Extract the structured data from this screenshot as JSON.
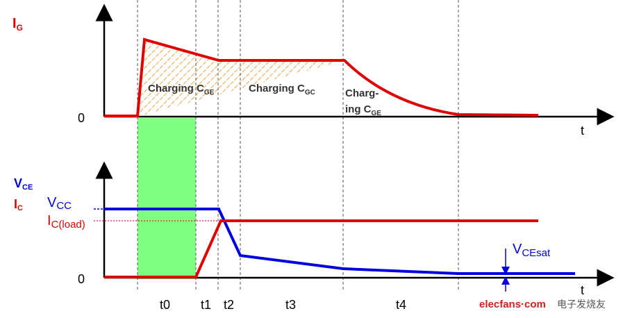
{
  "top_axis": {
    "y_label": {
      "main": "I",
      "sub": "G"
    },
    "zero": "0",
    "x_label": "t"
  },
  "regions": [
    {
      "main": "Charging C",
      "sub": "GE"
    },
    {
      "main": "Charging C",
      "sub": "GC"
    },
    {
      "line1": "Charg-",
      "main": "ing C",
      "sub": "GE"
    }
  ],
  "bottom_axis": {
    "y_labels": [
      {
        "main": "V",
        "sub": "CE"
      },
      {
        "main": "I",
        "sub": "C"
      }
    ],
    "vcc": {
      "main": "V",
      "sub": "CC"
    },
    "ic_load": {
      "main": "I",
      "sub": "C(load)"
    },
    "zero": "0",
    "x_label": "t",
    "vcesat": {
      "main": "V",
      "sub": "CEsat"
    }
  },
  "intervals": [
    "t0",
    "t1",
    "t2",
    "t3",
    "t4"
  ],
  "watermark": {
    "brand": "elecfans·com",
    "cn": "电子发烧友"
  }
}
